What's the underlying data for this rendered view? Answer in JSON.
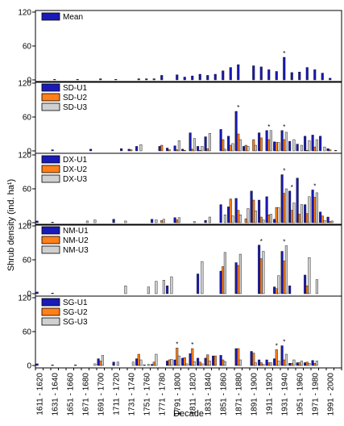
{
  "chart_data": {
    "type": "bar",
    "ylabel": "Shrub density (ind. ha¹)",
    "xlabel": "Decade",
    "ylim": [
      0,
      120
    ],
    "yticks": [
      "0",
      "60",
      "120"
    ],
    "categories": [
      "1611-1620",
      "1621-1630",
      "1631-1640",
      "1641-1650",
      "1651-1660",
      "1661-1670",
      "1671-1680",
      "1681-1690",
      "1691-1700",
      "1701-1710",
      "1711-1720",
      "1721-1730",
      "1731-1740",
      "1741-1750",
      "1751-1760",
      "1761-1770",
      "1771-1780",
      "1781-1790",
      "1791-1800",
      "1801-1810",
      "1811-1820",
      "1821-1830",
      "1831-1840",
      "1841-1850",
      "1851-1860",
      "1861-1870",
      "1871-1880",
      "1881-1890",
      "1891-1900",
      "1901-1910",
      "1911-1920",
      "1921-1930",
      "1931-1940",
      "1941-1950",
      "1951-1960",
      "1961-1970",
      "1971-1980",
      "1981-1990",
      "1991-2000",
      "2001-2010"
    ],
    "tick_labels": [
      "1611 - 1620",
      "1631 - 1640",
      "1651 - 1660",
      "1671 - 1680",
      "1691 - 1700",
      "1711 - 1720",
      "1731 - 1740",
      "1751 - 1760",
      "1771 - 1780",
      "1791 - 1800",
      "1811 - 1820",
      "1831 - 1840",
      "1851 - 1860",
      "1871 - 1880",
      "1891 - 1900",
      "1911 - 1920",
      "1931 - 1940",
      "1951 - 1960",
      "1971 - 1980",
      "1991 - 2000"
    ],
    "colors": {
      "U1": "#1a1ab8",
      "U2": "#ff7f1a",
      "U3": "#d0d0d0",
      "mean": "#1a1ab8"
    },
    "panels": [
      {
        "series": [
          {
            "name": "Mean",
            "values": [
              0,
              0,
              1,
              0,
              0,
              1,
              0,
              0,
              2,
              0,
              1,
              0,
              0,
              2,
              2,
              2,
              8,
              0,
              9,
              5,
              7,
              10,
              8,
              10,
              16,
              22,
              27,
              0,
              25,
              23,
              18,
              15,
              40,
              13,
              14,
              22,
              18,
              12,
              3,
              0
            ]
          }
        ],
        "asterisks": [
          32
        ]
      },
      {
        "series": [
          {
            "name": "SD-U1",
            "values": [
              0,
              0,
              2,
              0,
              0,
              0,
              0,
              3,
              0,
              0,
              0,
              4,
              3,
              8,
              0,
              0,
              8,
              5,
              9,
              3,
              32,
              8,
              25,
              0,
              38,
              26,
              70,
              8,
              0,
              32,
              36,
              16,
              36,
              17,
              12,
              26,
              28,
              26,
              4,
              1
            ]
          },
          {
            "name": "SD-U2",
            "values": [
              0,
              0,
              0,
              0,
              0,
              0,
              0,
              0,
              0,
              0,
              0,
              0,
              2,
              0,
              0,
              0,
              10,
              2,
              2,
              1,
              3,
              1,
              4,
              0,
              20,
              10,
              30,
              10,
              20,
              23,
              20,
              15,
              20,
              0,
              0,
              1,
              7,
              0,
              2,
              0
            ]
          },
          {
            "name": "SD-U3",
            "values": [
              0,
              0,
              0,
              0,
              0,
              0,
              0,
              0,
              0,
              0,
              0,
              0,
              0,
              11,
              0,
              0,
              0,
              0,
              18,
              0,
              22,
              8,
              31,
              0,
              3,
              13,
              20,
              8,
              10,
              0,
              36,
              15,
              33,
              20,
              10,
              18,
              20,
              7,
              0,
              0
            ]
          }
        ],
        "asterisks": [
          26,
          30,
          32
        ]
      },
      {
        "series": [
          {
            "name": "DX-U1",
            "values": [
              3,
              0,
              1,
              0,
              0,
              0,
              0,
              0,
              0,
              0,
              6,
              0,
              0,
              0,
              0,
              6,
              0,
              0,
              9,
              0,
              0,
              0,
              4,
              0,
              32,
              28,
              43,
              0,
              56,
              40,
              46,
              6,
              85,
              56,
              79,
              32,
              58,
              19,
              10,
              0
            ]
          },
          {
            "name": "DX-U2",
            "values": [
              0,
              0,
              0,
              0,
              0,
              0,
              0,
              0,
              0,
              0,
              0,
              0,
              0,
              0,
              0,
              0,
              4,
              0,
              5,
              0,
              0,
              0,
              0,
              0,
              0,
              42,
              22,
              7,
              40,
              10,
              14,
              27,
              52,
              22,
              15,
              16,
              45,
              12,
              2,
              0
            ]
          },
          {
            "name": "DX-U3",
            "values": [
              0,
              0,
              0,
              0,
              0,
              0,
              3,
              5,
              0,
              0,
              0,
              3,
              0,
              0,
              0,
              5,
              6,
              0,
              9,
              0,
              2,
              0,
              10,
              0,
              14,
              12,
              14,
              25,
              21,
              5,
              15,
              27,
              60,
              35,
              32,
              46,
              53,
              4,
              3,
              0
            ]
          }
        ],
        "asterisks": [
          32,
          33,
          36
        ]
      },
      {
        "series": [
          {
            "name": "NM-U1",
            "values": [
              3,
              0,
              1,
              0,
              0,
              0,
              0,
              0,
              0,
              0,
              0,
              0,
              0,
              0,
              0,
              0,
              0,
              14,
              0,
              0,
              0,
              35,
              0,
              0,
              40,
              0,
              55,
              0,
              0,
              86,
              0,
              12,
              75,
              14,
              0,
              33,
              0,
              0,
              0,
              0
            ]
          },
          {
            "name": "NM-U2",
            "values": [
              0,
              0,
              0,
              0,
              0,
              0,
              0,
              0,
              0,
              0,
              0,
              0,
              0,
              0,
              0,
              0,
              0,
              0,
              0,
              0,
              0,
              0,
              0,
              0,
              48,
              0,
              50,
              0,
              0,
              62,
              0,
              9,
              58,
              0,
              0,
              14,
              0,
              0,
              0,
              0
            ]
          },
          {
            "name": "NM-U3",
            "values": [
              0,
              0,
              0,
              0,
              0,
              0,
              0,
              0,
              0,
              0,
              0,
              14,
              0,
              0,
              12,
              22,
              24,
              30,
              0,
              0,
              0,
              57,
              0,
              0,
              73,
              0,
              70,
              0,
              0,
              75,
              0,
              32,
              85,
              0,
              0,
              64,
              25,
              0,
              0,
              0
            ]
          }
        ],
        "asterisks": [
          29,
          32
        ]
      },
      {
        "series": [
          {
            "name": "SG-U1",
            "values": [
              3,
              0,
              1,
              0,
              0,
              1,
              0,
              0,
              12,
              0,
              6,
              0,
              0,
              12,
              1,
              2,
              0,
              8,
              10,
              13,
              21,
              13,
              13,
              17,
              18,
              0,
              30,
              0,
              25,
              10,
              10,
              12,
              35,
              4,
              5,
              5,
              9,
              0,
              0,
              0
            ]
          },
          {
            "name": "SG-U2",
            "values": [
              0,
              0,
              0,
              0,
              0,
              0,
              0,
              0,
              8,
              0,
              0,
              0,
              0,
              20,
              0,
              6,
              0,
              10,
              31,
              14,
              30,
              6,
              19,
              17,
              10,
              0,
              30,
              0,
              22,
              5,
              5,
              28,
              10,
              4,
              5,
              6,
              4,
              0,
              0,
              0
            ]
          },
          {
            "name": "SG-U3",
            "values": [
              0,
              0,
              0,
              0,
              0,
              0,
              0,
              3,
              18,
              0,
              6,
              0,
              6,
              10,
              2,
              20,
              0,
              11,
              17,
              3,
              7,
              3,
              8,
              0,
              7,
              0,
              10,
              0,
              5,
              2,
              5,
              8,
              20,
              10,
              8,
              4,
              8,
              0,
              0,
              0
            ]
          }
        ],
        "asterisks": [
          18,
          20,
          31,
          32
        ]
      }
    ]
  }
}
